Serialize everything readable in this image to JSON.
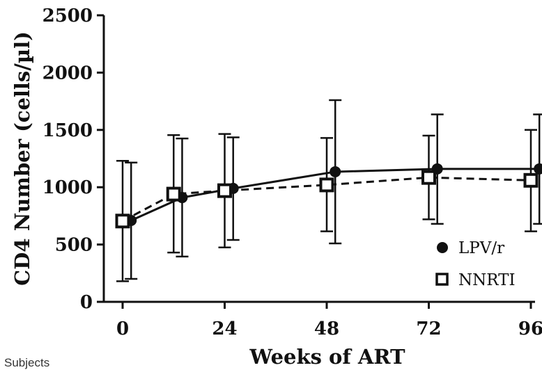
{
  "chart_data": {
    "type": "line",
    "title": "",
    "xlabel": "Weeks of ART",
    "ylabel": "CD4 Number (cells/µl)",
    "xlim": [
      0,
      96
    ],
    "ylim": [
      0,
      2500
    ],
    "x_ticks": [
      "0",
      "24",
      "48",
      "72",
      "96"
    ],
    "y_ticks": [
      "0",
      "500",
      "1000",
      "1500",
      "2000",
      "2500"
    ],
    "legend_position": "bottom-right",
    "series": [
      {
        "name": "LPV/r",
        "marker": "filled-circle",
        "line_style": "solid",
        "color": "#111111",
        "x": [
          2,
          14,
          26,
          50,
          74,
          98
        ],
        "y": [
          710,
          910,
          990,
          1135,
          1160,
          1160
        ],
        "y_lower": [
          200,
          395,
          540,
          510,
          680,
          680
        ],
        "y_upper": [
          1215,
          1425,
          1435,
          1760,
          1635,
          1635
        ]
      },
      {
        "name": "NNRTI",
        "marker": "open-square",
        "line_style": "dashed",
        "color": "#111111",
        "x": [
          0,
          12,
          24,
          48,
          72,
          96
        ],
        "y": [
          705,
          940,
          970,
          1020,
          1085,
          1060
        ],
        "y_lower": [
          180,
          430,
          475,
          615,
          720,
          615
        ],
        "y_upper": [
          1230,
          1455,
          1465,
          1430,
          1450,
          1500
        ]
      }
    ]
  },
  "footer": {
    "text": "Subjects"
  }
}
